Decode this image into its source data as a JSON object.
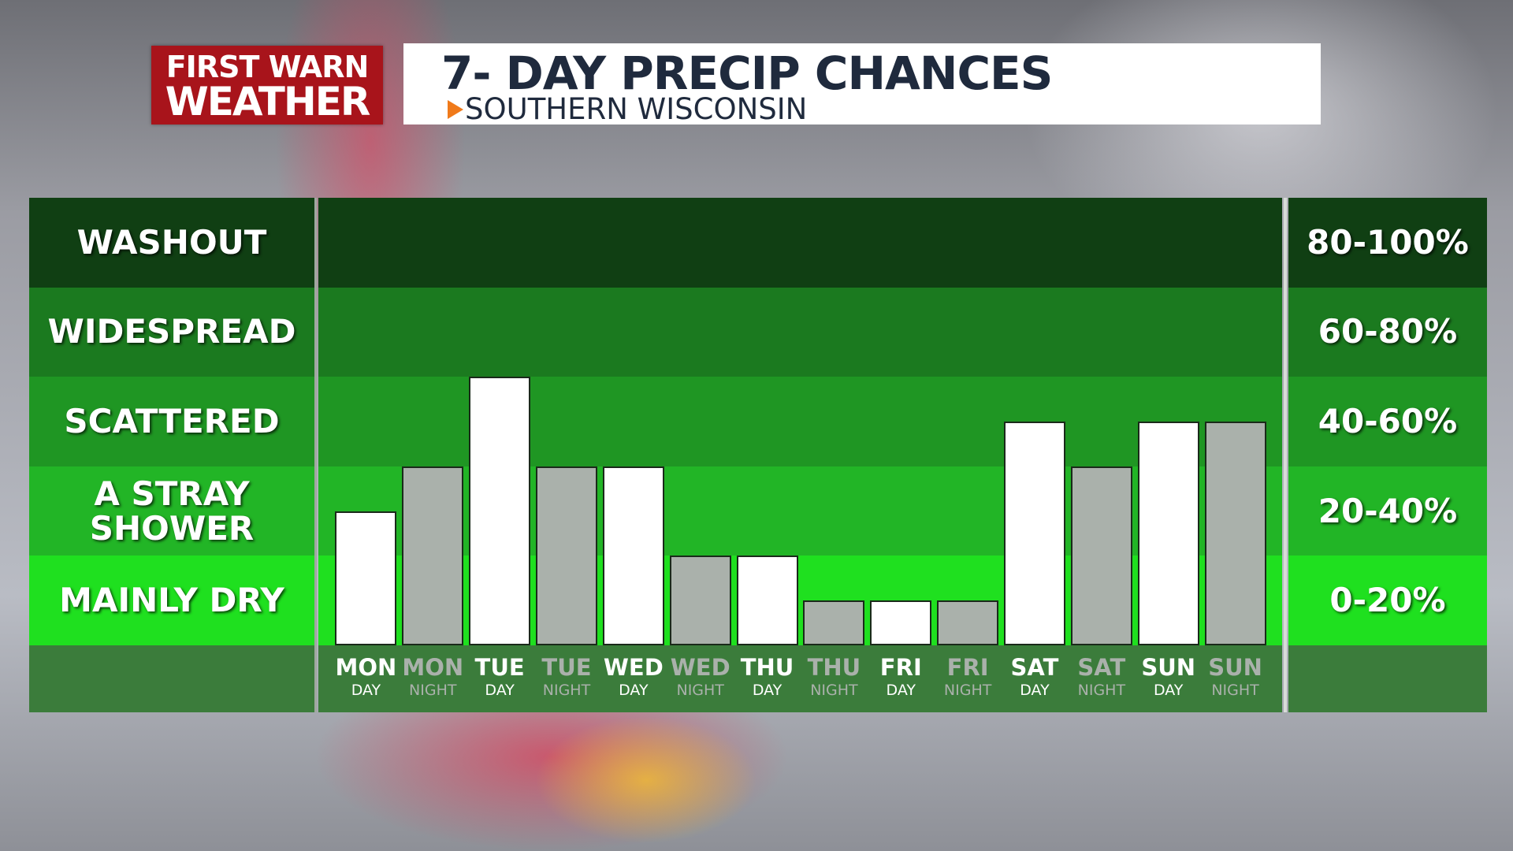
{
  "brand": {
    "line1": "FIRST WARN",
    "line2": "WEATHER"
  },
  "chart_data": {
    "type": "bar",
    "title": "7- DAY PRECIP CHANCES",
    "subtitle": "SOUTHERN WISCONSIN",
    "categories": [
      "MON",
      "MON",
      "TUE",
      "TUE",
      "WED",
      "WED",
      "THU",
      "THU",
      "FRI",
      "FRI",
      "SAT",
      "SAT",
      "SUN",
      "SUN"
    ],
    "sub_categories": [
      "DAY",
      "NIGHT",
      "DAY",
      "NIGHT",
      "DAY",
      "NIGHT",
      "DAY",
      "NIGHT",
      "DAY",
      "NIGHT",
      "DAY",
      "NIGHT",
      "DAY",
      "NIGHT"
    ],
    "values": [
      30,
      40,
      60,
      40,
      40,
      20,
      20,
      10,
      10,
      10,
      50,
      40,
      50,
      50
    ],
    "colors": [
      "#ffffff",
      "#aab1ab",
      "#ffffff",
      "#aab1ab",
      "#ffffff",
      "#aab1ab",
      "#ffffff",
      "#aab1ab",
      "#ffffff",
      "#aab1ab",
      "#ffffff",
      "#aab1ab",
      "#ffffff",
      "#aab1ab"
    ],
    "ylim": [
      0,
      100
    ],
    "bands": [
      {
        "label": "MAINLY DRY",
        "range": "0-20%",
        "from": 0,
        "to": 20,
        "color": "#1fe01f"
      },
      {
        "label": "A STRAY SHOWER",
        "range": "20-40%",
        "from": 20,
        "to": 40,
        "color": "#22b526"
      },
      {
        "label": "SCATTERED",
        "range": "40-60%",
        "from": 40,
        "to": 60,
        "color": "#1f9623"
      },
      {
        "label": "WIDESPREAD",
        "range": "60-80%",
        "from": 60,
        "to": 80,
        "color": "#1b7a1f"
      },
      {
        "label": "WASHOUT",
        "range": "80-100%",
        "from": 80,
        "to": 100,
        "color": "#103f13"
      }
    ]
  }
}
